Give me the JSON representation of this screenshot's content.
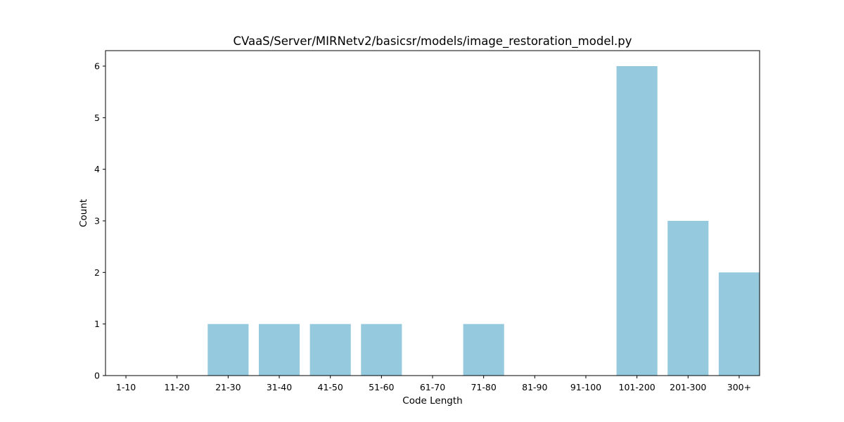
{
  "chart_data": {
    "type": "bar",
    "title": "CVaaS/Server/MIRNetv2/basicsr/models/image_restoration_model.py",
    "xlabel": "Code Length",
    "ylabel": "Count",
    "categories": [
      "1-10",
      "11-20",
      "21-30",
      "31-40",
      "41-50",
      "51-60",
      "61-70",
      "71-80",
      "81-90",
      "91-100",
      "101-200",
      "201-300",
      "300+"
    ],
    "values": [
      0,
      0,
      1,
      1,
      1,
      1,
      0,
      1,
      0,
      0,
      6,
      3,
      2
    ],
    "ylim": [
      0,
      6.3
    ],
    "yticks": [
      0,
      1,
      2,
      3,
      4,
      5,
      6
    ],
    "bar_color": "#95c9de",
    "grid": false,
    "legend": "none"
  }
}
